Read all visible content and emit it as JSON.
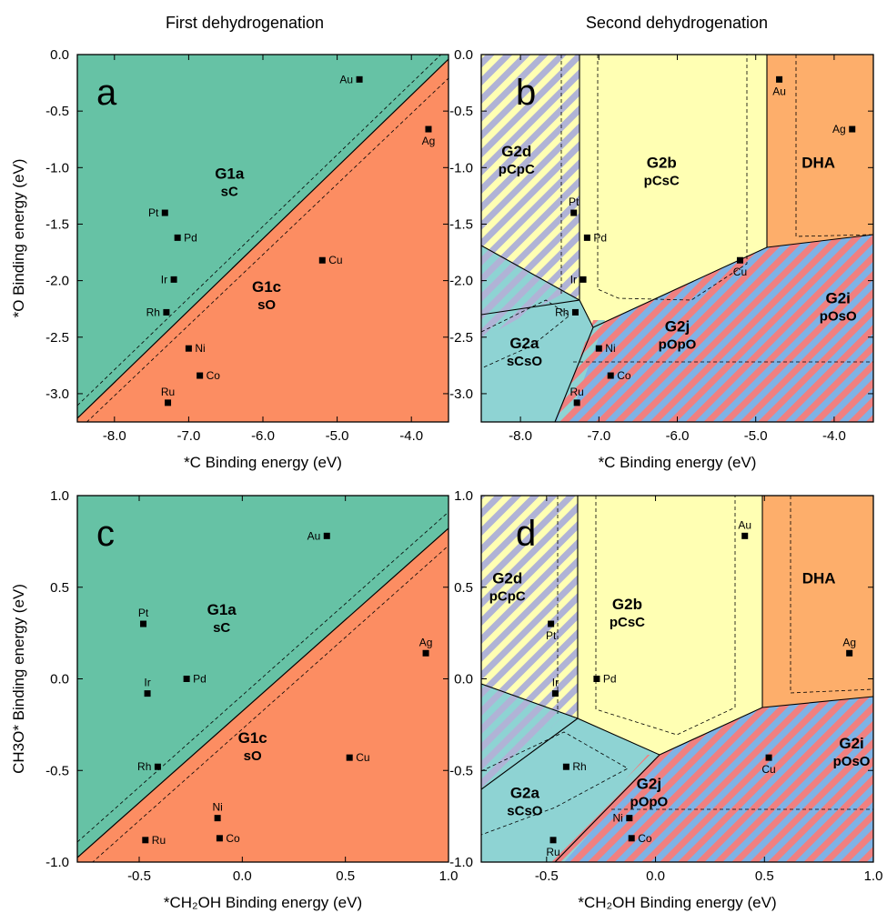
{
  "column_titles": [
    "First dehydrogenation",
    "Second dehydrogenation"
  ],
  "colors": {
    "green": "#66c2a5",
    "salmon": "#fc8d62",
    "yellow": "#ffffb3",
    "orange": "#fdae6b",
    "teal": "#8ed3d3",
    "stripe_lavender": "#b0b3d6",
    "stripe_red": "#f08080",
    "stripe_blue": "#7fb2e5"
  },
  "chart_data": [
    {
      "panel": "a",
      "type": "scatter",
      "xlabel": "*C Binding energy (eV)",
      "ylabel": "*O Binding energy (eV)",
      "xlim": [
        -8.5,
        -3.5
      ],
      "ylim": [
        -3.25,
        0.0
      ],
      "xticks": [
        -8.0,
        -7.0,
        -6.0,
        -5.0,
        -4.0
      ],
      "xtick_labels": [
        "-8.0",
        "-7.0",
        "-6.0",
        "-5.0",
        "-4.0"
      ],
      "yticks": [
        0.0,
        -0.5,
        -1.0,
        -1.5,
        -2.0,
        -2.5,
        -3.0
      ],
      "ytick_labels": [
        "0.0",
        "-0.5",
        "-1.0",
        "-1.5",
        "-2.0",
        "-2.5",
        "-3.0"
      ],
      "boundary": {
        "x": [
          -8.5,
          -3.5
        ],
        "y": [
          -3.2,
          0.0
        ]
      },
      "regions": [
        {
          "name": "G1a",
          "sub": "sC",
          "x": -6.45,
          "y": -1.1
        },
        {
          "name": "G1c",
          "sub": "sO",
          "x": -5.95,
          "y": -2.1
        }
      ],
      "points": [
        {
          "label": "Au",
          "x": -4.7,
          "y": -0.22
        },
        {
          "label": "Ag",
          "x": -3.77,
          "y": -0.66
        },
        {
          "label": "Pt",
          "x": -7.32,
          "y": -1.4
        },
        {
          "label": "Pd",
          "x": -7.15,
          "y": -1.62
        },
        {
          "label": "Ir",
          "x": -7.2,
          "y": -1.99
        },
        {
          "label": "Rh",
          "x": -7.3,
          "y": -2.28
        },
        {
          "label": "Ni",
          "x": -7.0,
          "y": -2.6
        },
        {
          "label": "Co",
          "x": -6.85,
          "y": -2.84
        },
        {
          "label": "Ru",
          "x": -7.28,
          "y": -3.08
        },
        {
          "label": "Cu",
          "x": -5.2,
          "y": -1.82
        }
      ]
    },
    {
      "panel": "b",
      "type": "scatter",
      "xlabel": "*C Binding energy (eV)",
      "ylabel": "",
      "xlim": [
        -8.5,
        -3.5
      ],
      "ylim": [
        -3.25,
        0.0
      ],
      "xticks": [
        -8.0,
        -7.0,
        -6.0,
        -5.0,
        -4.0
      ],
      "xtick_labels": [
        "-8.0",
        "-7.0",
        "-6.0",
        "-5.0",
        "-4.0"
      ],
      "yticks": [
        0.0,
        -0.5,
        -1.0,
        -1.5,
        -2.0,
        -2.5,
        -3.0
      ],
      "ytick_labels": [
        "0.0",
        "-0.5",
        "-1.0",
        "-1.5",
        "-2.0",
        "-2.5",
        "-3.0"
      ],
      "regions": [
        {
          "name": "G2d",
          "sub": "pCpC",
          "x": -8.05,
          "y": -0.9
        },
        {
          "name": "G2b",
          "sub": "pCsC",
          "x": -6.2,
          "y": -1.0
        },
        {
          "name": "DHA",
          "sub": "",
          "x": -4.2,
          "y": -1.0
        },
        {
          "name": "G2a",
          "sub": "sCsO",
          "x": -7.95,
          "y": -2.6
        },
        {
          "name": "G2j",
          "sub": "pOpO",
          "x": -6.0,
          "y": -2.45
        },
        {
          "name": "G2i",
          "sub": "pOsO",
          "x": -3.95,
          "y": -2.2
        }
      ],
      "points": [
        {
          "label": "Au",
          "x": -4.7,
          "y": -0.22
        },
        {
          "label": "Ag",
          "x": -3.77,
          "y": -0.66
        },
        {
          "label": "Pt",
          "x": -7.32,
          "y": -1.4
        },
        {
          "label": "Pd",
          "x": -7.15,
          "y": -1.62
        },
        {
          "label": "Ir",
          "x": -7.2,
          "y": -1.99
        },
        {
          "label": "Rh",
          "x": -7.3,
          "y": -2.28
        },
        {
          "label": "Ni",
          "x": -7.0,
          "y": -2.6
        },
        {
          "label": "Co",
          "x": -6.85,
          "y": -2.84
        },
        {
          "label": "Ru",
          "x": -7.28,
          "y": -3.08
        },
        {
          "label": "Cu",
          "x": -5.2,
          "y": -1.82
        }
      ]
    },
    {
      "panel": "c",
      "type": "scatter",
      "xlabel": "*CH₂OH Binding energy (eV)",
      "ylabel": "CH3O* Binding energy (eV)",
      "xlim": [
        -0.8,
        1.0
      ],
      "ylim": [
        -1.0,
        1.0
      ],
      "xticks": [
        -0.5,
        0.0,
        0.5,
        1.0
      ],
      "xtick_labels": [
        "-0.5",
        "0.0",
        "0.5",
        "1.0"
      ],
      "yticks": [
        1.0,
        0.5,
        0.0,
        -0.5,
        -1.0
      ],
      "ytick_labels": [
        "1.0",
        "0.5",
        "0.0",
        "-0.5",
        "-1.0"
      ],
      "boundary": {
        "x": [
          -0.8,
          1.0
        ],
        "y": [
          -0.97,
          0.81
        ]
      },
      "regions": [
        {
          "name": "G1a",
          "sub": "sC",
          "x": -0.1,
          "y": 0.35
        },
        {
          "name": "G1c",
          "sub": "sO",
          "x": 0.05,
          "y": -0.35
        }
      ],
      "points": [
        {
          "label": "Au",
          "x": 0.41,
          "y": 0.78
        },
        {
          "label": "Pt",
          "x": -0.48,
          "y": 0.3
        },
        {
          "label": "Ir",
          "x": -0.46,
          "y": -0.08
        },
        {
          "label": "Pd",
          "x": -0.27,
          "y": 0.0
        },
        {
          "label": "Ag",
          "x": 0.89,
          "y": 0.14
        },
        {
          "label": "Rh",
          "x": -0.41,
          "y": -0.48
        },
        {
          "label": "Cu",
          "x": 0.52,
          "y": -0.43
        },
        {
          "label": "Ni",
          "x": -0.12,
          "y": -0.76
        },
        {
          "label": "Co",
          "x": -0.11,
          "y": -0.87
        },
        {
          "label": "Ru",
          "x": -0.47,
          "y": -0.88
        }
      ]
    },
    {
      "panel": "d",
      "type": "scatter",
      "xlabel": "*CH₂OH Binding energy (eV)",
      "ylabel": "",
      "xlim": [
        -0.8,
        1.0
      ],
      "ylim": [
        -1.0,
        1.0
      ],
      "xticks": [
        -0.5,
        0.0,
        0.5,
        1.0
      ],
      "xtick_labels": [
        "-0.5",
        "0.0",
        "0.5",
        "1.0"
      ],
      "yticks": [
        1.0,
        0.5,
        0.0,
        -0.5,
        -1.0
      ],
      "ytick_labels": [
        "1.0",
        "0.5",
        "0.0",
        "-0.5",
        "-1.0"
      ],
      "regions": [
        {
          "name": "G2d",
          "sub": "pCpC",
          "x": -0.68,
          "y": 0.52
        },
        {
          "name": "G2b",
          "sub": "pCsC",
          "x": -0.13,
          "y": 0.38
        },
        {
          "name": "DHA",
          "sub": "",
          "x": 0.75,
          "y": 0.52
        },
        {
          "name": "G2a",
          "sub": "sCsO",
          "x": -0.6,
          "y": -0.65
        },
        {
          "name": "G2j",
          "sub": "pOpO",
          "x": -0.03,
          "y": -0.6
        },
        {
          "name": "G2i",
          "sub": "pOsO",
          "x": 0.9,
          "y": -0.38
        }
      ],
      "points": [
        {
          "label": "Au",
          "x": 0.41,
          "y": 0.78
        },
        {
          "label": "Pt",
          "x": -0.48,
          "y": 0.3
        },
        {
          "label": "Ir",
          "x": -0.46,
          "y": -0.08
        },
        {
          "label": "Pd",
          "x": -0.27,
          "y": 0.0
        },
        {
          "label": "Ag",
          "x": 0.89,
          "y": 0.14
        },
        {
          "label": "Rh",
          "x": -0.41,
          "y": -0.48
        },
        {
          "label": "Cu",
          "x": 0.52,
          "y": -0.43
        },
        {
          "label": "Ni",
          "x": -0.12,
          "y": -0.76
        },
        {
          "label": "Co",
          "x": -0.11,
          "y": -0.87
        },
        {
          "label": "Ru",
          "x": -0.47,
          "y": -0.88
        }
      ]
    }
  ]
}
